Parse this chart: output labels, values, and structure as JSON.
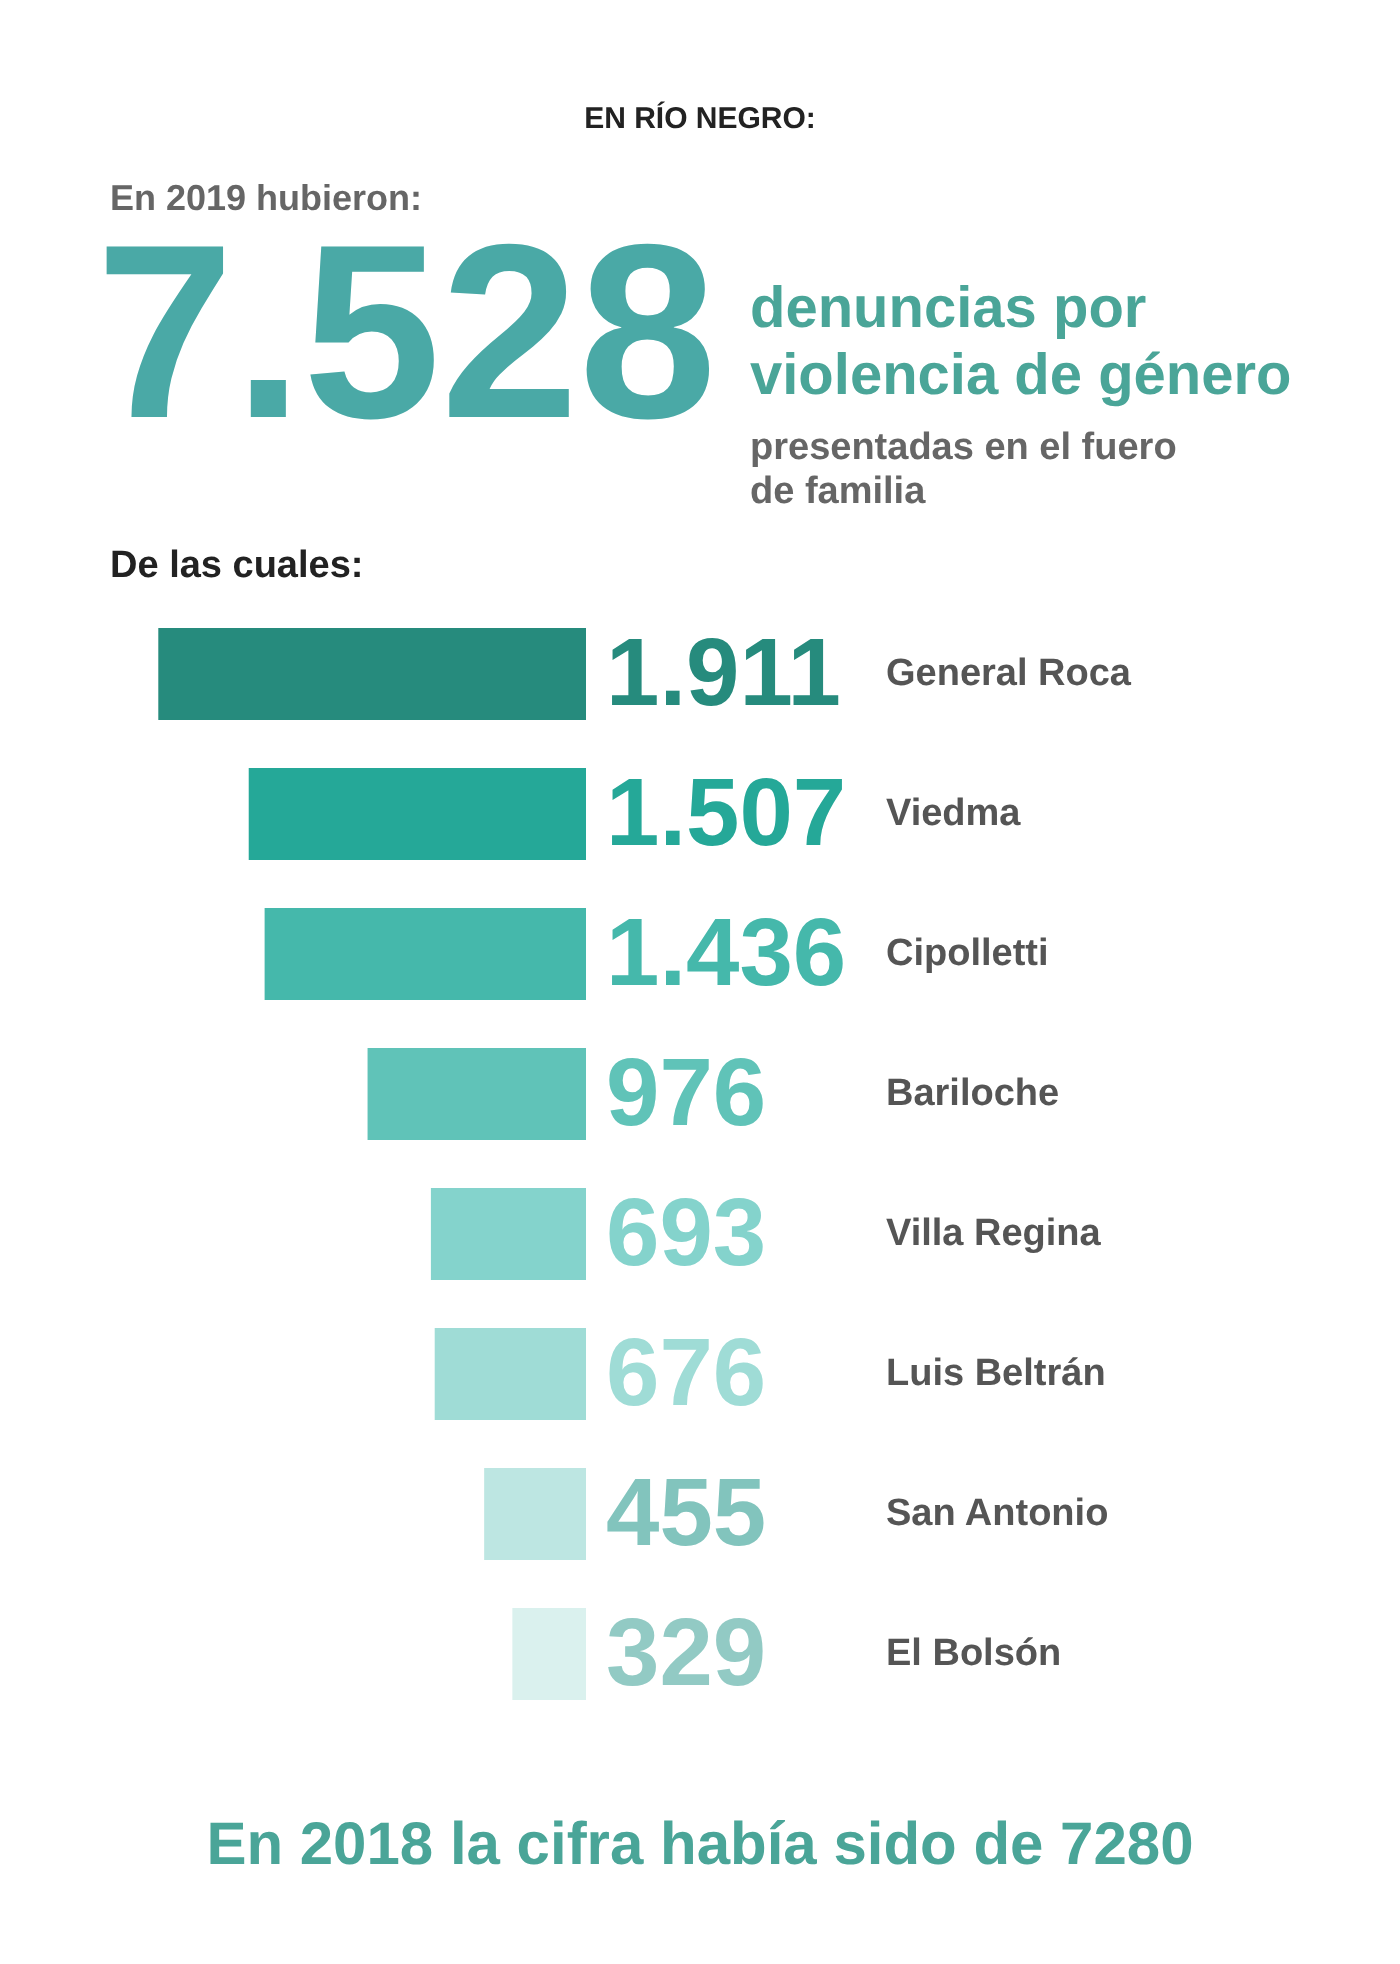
{
  "chart_data": {
    "type": "bar",
    "orientation": "horizontal",
    "title": "EN RÍO NEGRO:",
    "subtitle": "En 2019 hubieron:",
    "annotations": [
      "7.528",
      "denuncias por violencia de género",
      "presentadas en el fuero de familia",
      "De las cuales:",
      "En 2018 la cifra había sido de 7280"
    ],
    "categories": [
      "General Roca",
      "Viedma",
      "Cipolletti",
      "Bariloche",
      "Villa Regina",
      "Luis Beltrán",
      "San Antonio",
      "El Bolsón"
    ],
    "values": [
      1911,
      1507,
      1436,
      976,
      693,
      676,
      455,
      329
    ],
    "value_labels": [
      "1.911",
      "1.507",
      "1.436",
      "976",
      "693",
      "676",
      "455",
      "329"
    ],
    "colors": [
      "#268b7d",
      "#25a898",
      "#45b8ab",
      "#60c3b8",
      "#84d3cc",
      "#9fdcd6",
      "#bde6e2",
      "#daf1ee"
    ]
  }
}
